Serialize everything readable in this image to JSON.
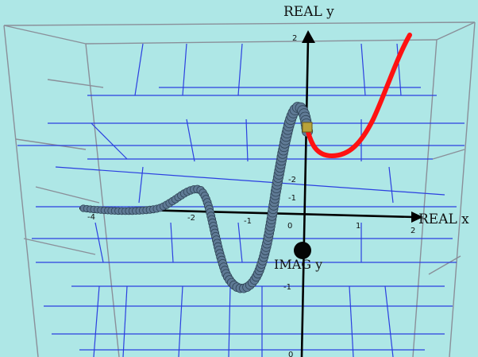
{
  "axes": {
    "real_x_label": "REAL x",
    "real_y_label": "REAL y",
    "imag_y_label": "IMAG y"
  },
  "ticks": {
    "real_x": [
      "-4",
      "-2",
      "-1",
      "0",
      "1",
      "2"
    ],
    "real_y": [
      "2",
      "-1",
      "-2"
    ],
    "imag_y": [
      "-1",
      "0"
    ]
  },
  "colors": {
    "background": "#aee7e6",
    "grid_blue": "#2b3fe0",
    "grid_gray": "#8a8f99",
    "axis": "#000000",
    "real_curve": "#ff1212",
    "complex_beads": "#5f7a95",
    "marker": "#b8a23a"
  },
  "icons": {
    "origin_marker": "yellow-cube-icon",
    "imag_axis_ball": "black-sphere-icon",
    "axis_heads": "arrowhead-icon"
  }
}
